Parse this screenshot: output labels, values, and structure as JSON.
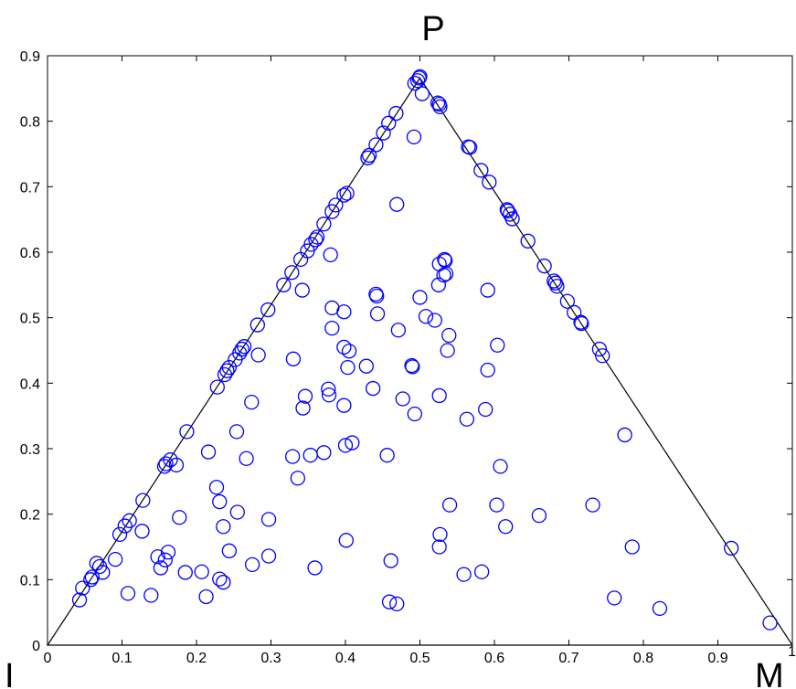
{
  "chart_data": {
    "type": "scatter",
    "xlim": [
      0,
      1
    ],
    "ylim": [
      0,
      0.9
    ],
    "x_ticks": [
      "0",
      "0.1",
      "0.2",
      "0.3",
      "0.4",
      "0.5",
      "0.6",
      "0.7",
      "0.8",
      "0.9",
      "1"
    ],
    "y_ticks": [
      "0",
      "0.1",
      "0.2",
      "0.3",
      "0.4",
      "0.5",
      "0.6",
      "0.7",
      "0.8",
      "0.9"
    ],
    "corner_labels": {
      "top": "P",
      "left": "I",
      "right": "M"
    },
    "triangle": [
      [
        0,
        0
      ],
      [
        0.5,
        0.866
      ],
      [
        1,
        0
      ]
    ],
    "marker": "open-circle",
    "marker_color": "#0000ff",
    "line_color": "#000000",
    "grid": false,
    "points": [
      [
        0.499,
        0.866
      ],
      [
        0.5,
        0.868
      ],
      [
        0.497,
        0.862
      ],
      [
        0.493,
        0.858
      ],
      [
        0.503,
        0.842
      ],
      [
        0.524,
        0.828
      ],
      [
        0.526,
        0.826
      ],
      [
        0.527,
        0.822
      ],
      [
        0.468,
        0.812
      ],
      [
        0.458,
        0.797
      ],
      [
        0.451,
        0.782
      ],
      [
        0.441,
        0.764
      ],
      [
        0.432,
        0.748
      ],
      [
        0.43,
        0.744
      ],
      [
        0.492,
        0.776
      ],
      [
        0.565,
        0.761
      ],
      [
        0.567,
        0.76
      ],
      [
        0.582,
        0.725
      ],
      [
        0.593,
        0.707
      ],
      [
        0.402,
        0.69
      ],
      [
        0.398,
        0.687
      ],
      [
        0.387,
        0.672
      ],
      [
        0.382,
        0.662
      ],
      [
        0.469,
        0.673
      ],
      [
        0.371,
        0.643
      ],
      [
        0.362,
        0.623
      ],
      [
        0.36,
        0.619
      ],
      [
        0.354,
        0.612
      ],
      [
        0.349,
        0.602
      ],
      [
        0.38,
        0.596
      ],
      [
        0.617,
        0.665
      ],
      [
        0.618,
        0.663
      ],
      [
        0.621,
        0.658
      ],
      [
        0.624,
        0.651
      ],
      [
        0.645,
        0.617
      ],
      [
        0.34,
        0.589
      ],
      [
        0.328,
        0.569
      ],
      [
        0.317,
        0.55
      ],
      [
        0.342,
        0.542
      ],
      [
        0.296,
        0.512
      ],
      [
        0.282,
        0.489
      ],
      [
        0.667,
        0.579
      ],
      [
        0.68,
        0.556
      ],
      [
        0.682,
        0.553
      ],
      [
        0.684,
        0.548
      ],
      [
        0.698,
        0.525
      ],
      [
        0.707,
        0.508
      ],
      [
        0.716,
        0.493
      ],
      [
        0.717,
        0.491
      ],
      [
        0.741,
        0.452
      ],
      [
        0.745,
        0.442
      ],
      [
        0.264,
        0.456
      ],
      [
        0.261,
        0.452
      ],
      [
        0.258,
        0.446
      ],
      [
        0.252,
        0.436
      ],
      [
        0.244,
        0.424
      ],
      [
        0.241,
        0.419
      ],
      [
        0.238,
        0.413
      ],
      [
        0.283,
        0.443
      ],
      [
        0.228,
        0.394
      ],
      [
        0.441,
        0.536
      ],
      [
        0.442,
        0.533
      ],
      [
        0.382,
        0.515
      ],
      [
        0.398,
        0.509
      ],
      [
        0.443,
        0.506
      ],
      [
        0.5,
        0.531
      ],
      [
        0.533,
        0.589
      ],
      [
        0.534,
        0.587
      ],
      [
        0.526,
        0.582
      ],
      [
        0.535,
        0.567
      ],
      [
        0.532,
        0.565
      ],
      [
        0.525,
        0.55
      ],
      [
        0.591,
        0.542
      ],
      [
        0.508,
        0.502
      ],
      [
        0.52,
        0.496
      ],
      [
        0.471,
        0.481
      ],
      [
        0.539,
        0.473
      ],
      [
        0.382,
        0.484
      ],
      [
        0.398,
        0.455
      ],
      [
        0.405,
        0.449
      ],
      [
        0.537,
        0.45
      ],
      [
        0.604,
        0.458
      ],
      [
        0.33,
        0.437
      ],
      [
        0.428,
        0.426
      ],
      [
        0.489,
        0.427
      ],
      [
        0.49,
        0.425
      ],
      [
        0.403,
        0.424
      ],
      [
        0.591,
        0.42
      ],
      [
        0.437,
        0.392
      ],
      [
        0.377,
        0.391
      ],
      [
        0.378,
        0.382
      ],
      [
        0.346,
        0.38
      ],
      [
        0.526,
        0.381
      ],
      [
        0.477,
        0.376
      ],
      [
        0.274,
        0.371
      ],
      [
        0.398,
        0.366
      ],
      [
        0.343,
        0.362
      ],
      [
        0.588,
        0.36
      ],
      [
        0.493,
        0.353
      ],
      [
        0.563,
        0.345
      ],
      [
        0.187,
        0.326
      ],
      [
        0.254,
        0.326
      ],
      [
        0.775,
        0.321
      ],
      [
        0.409,
        0.309
      ],
      [
        0.4,
        0.305
      ],
      [
        0.371,
        0.294
      ],
      [
        0.353,
        0.29
      ],
      [
        0.329,
        0.288
      ],
      [
        0.456,
        0.29
      ],
      [
        0.216,
        0.295
      ],
      [
        0.267,
        0.285
      ],
      [
        0.165,
        0.283
      ],
      [
        0.159,
        0.277
      ],
      [
        0.157,
        0.273
      ],
      [
        0.173,
        0.275
      ],
      [
        0.608,
        0.273
      ],
      [
        0.336,
        0.255
      ],
      [
        0.227,
        0.241
      ],
      [
        0.128,
        0.221
      ],
      [
        0.231,
        0.219
      ],
      [
        0.54,
        0.214
      ],
      [
        0.603,
        0.214
      ],
      [
        0.732,
        0.214
      ],
      [
        0.255,
        0.203
      ],
      [
        0.66,
        0.198
      ],
      [
        0.177,
        0.195
      ],
      [
        0.297,
        0.192
      ],
      [
        0.11,
        0.19
      ],
      [
        0.104,
        0.182
      ],
      [
        0.236,
        0.181
      ],
      [
        0.615,
        0.181
      ],
      [
        0.127,
        0.174
      ],
      [
        0.097,
        0.169
      ],
      [
        0.527,
        0.169
      ],
      [
        0.401,
        0.16
      ],
      [
        0.526,
        0.15
      ],
      [
        0.785,
        0.15
      ],
      [
        0.918,
        0.148
      ],
      [
        0.244,
        0.144
      ],
      [
        0.162,
        0.142
      ],
      [
        0.148,
        0.135
      ],
      [
        0.297,
        0.136
      ],
      [
        0.158,
        0.13
      ],
      [
        0.461,
        0.129
      ],
      [
        0.091,
        0.131
      ],
      [
        0.066,
        0.125
      ],
      [
        0.07,
        0.12
      ],
      [
        0.275,
        0.123
      ],
      [
        0.152,
        0.118
      ],
      [
        0.359,
        0.118
      ],
      [
        0.074,
        0.111
      ],
      [
        0.185,
        0.111
      ],
      [
        0.207,
        0.112
      ],
      [
        0.583,
        0.112
      ],
      [
        0.06,
        0.104
      ],
      [
        0.058,
        0.1
      ],
      [
        0.559,
        0.108
      ],
      [
        0.231,
        0.101
      ],
      [
        0.236,
        0.096
      ],
      [
        0.047,
        0.087
      ],
      [
        0.108,
        0.079
      ],
      [
        0.139,
        0.076
      ],
      [
        0.213,
        0.074
      ],
      [
        0.761,
        0.072
      ],
      [
        0.459,
        0.066
      ],
      [
        0.469,
        0.063
      ],
      [
        0.043,
        0.069
      ],
      [
        0.822,
        0.056
      ],
      [
        0.97,
        0.034
      ]
    ]
  }
}
